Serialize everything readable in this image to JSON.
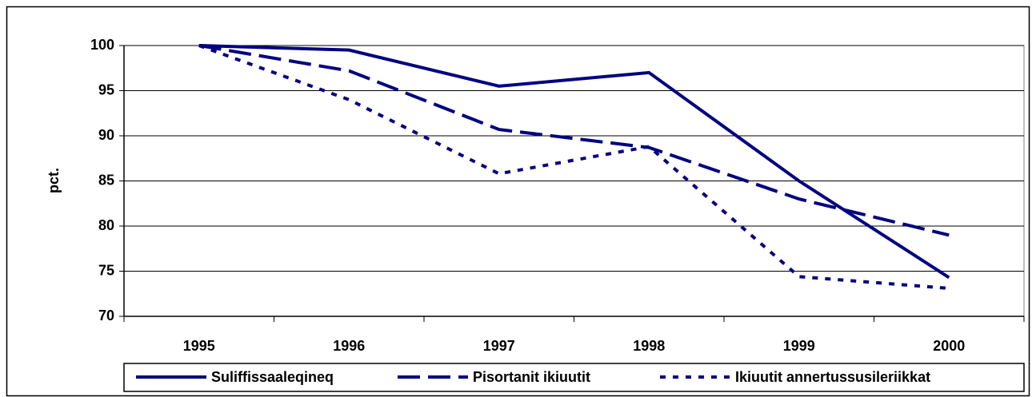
{
  "chart_data": {
    "type": "line",
    "y_label": "pct.",
    "categories": [
      "1995",
      "1996",
      "1997",
      "1998",
      "1999",
      "2000"
    ],
    "series": [
      {
        "name": "Suliffissaaleqineq",
        "color": "#000080",
        "dash": "solid",
        "values": [
          100,
          99.5,
          95.5,
          97,
          85,
          74.3
        ]
      },
      {
        "name": "Pisortanit ikiuutit",
        "color": "#000080",
        "dash": "dashed",
        "values": [
          100,
          97.2,
          90.7,
          88.7,
          83,
          79
        ]
      },
      {
        "name": "Ikiuutit annertussusileriikkat",
        "color": "#000080",
        "dash": "dotted",
        "values": [
          100,
          94,
          85.8,
          88.8,
          74.4,
          73.1
        ]
      }
    ],
    "ylim": [
      70,
      100
    ],
    "yticks": [
      70,
      75,
      80,
      85,
      90,
      95,
      100
    ],
    "grid": true,
    "legend": "bottom"
  }
}
